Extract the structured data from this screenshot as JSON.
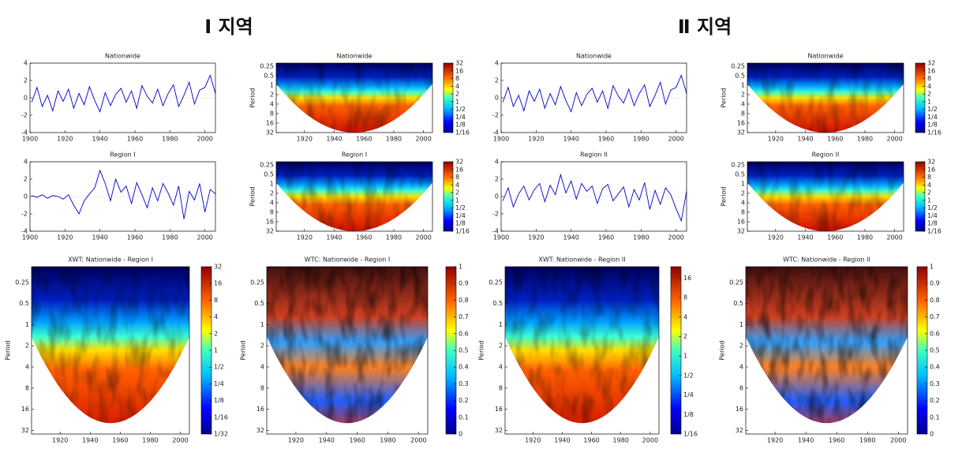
{
  "headers": [
    "Ⅰ 지역",
    "Ⅱ 지역"
  ],
  "chart_data": [
    {
      "type": "line",
      "title": "Nationwide",
      "color": "#0000cc",
      "xlim": [
        1900,
        2006
      ],
      "xticks": [
        1900,
        1920,
        1940,
        1960,
        1980,
        2000
      ],
      "ylim": [
        -4,
        4
      ],
      "yticks": [
        -4,
        -2,
        0,
        2,
        4
      ],
      "x": [
        1901,
        1904,
        1907,
        1910,
        1913,
        1916,
        1919,
        1922,
        1925,
        1928,
        1931,
        1934,
        1937,
        1940,
        1943,
        1946,
        1949,
        1952,
        1955,
        1958,
        1961,
        1964,
        1967,
        1970,
        1973,
        1976,
        1979,
        1982,
        1985,
        1988,
        1991,
        1994,
        1997,
        2000,
        2003,
        2006
      ],
      "values": [
        -0.5,
        1.2,
        -1.0,
        0.3,
        -1.5,
        0.8,
        -0.4,
        1.0,
        -1.2,
        0.5,
        -0.8,
        1.3,
        -0.3,
        -1.6,
        0.6,
        -0.9,
        0.4,
        1.1,
        -0.5,
        0.8,
        -1.2,
        1.4,
        0.2,
        -0.6,
        1.0,
        -0.9,
        0.5,
        1.5,
        -1.0,
        0.3,
        1.8,
        -0.7,
        0.9,
        1.2,
        2.6,
        0.5
      ]
    },
    {
      "type": "heatmap",
      "title": "Nationwide",
      "ylabel": "Period",
      "xlim": [
        1901,
        2006
      ],
      "xticks": [
        1920,
        1940,
        1960,
        1980,
        2000
      ],
      "ylim": [
        0.2,
        32
      ],
      "yticks": [
        0.25,
        0.5,
        1,
        2,
        4,
        8,
        16,
        32
      ],
      "log2": true,
      "colorbar": {
        "lim": [
          0.0625,
          32
        ],
        "log2": true,
        "ticks": [
          32,
          16,
          8,
          4,
          2,
          1,
          {
            "value": 0.5,
            "label": "1/2"
          },
          {
            "value": 0.25,
            "label": "1/4"
          },
          {
            "value": 0.125,
            "label": "1/8"
          },
          {
            "value": 0.0625,
            "label": "1/16"
          }
        ]
      }
    },
    {
      "type": "line",
      "title": "Nationwide",
      "color": "#0000cc",
      "xlim": [
        1900,
        2006
      ],
      "xticks": [
        1900,
        1920,
        1940,
        1960,
        1980,
        2000
      ],
      "ylim": [
        -4,
        4
      ],
      "yticks": [
        -4,
        -2,
        0,
        2,
        4
      ],
      "x": [
        1901,
        1904,
        1907,
        1910,
        1913,
        1916,
        1919,
        1922,
        1925,
        1928,
        1931,
        1934,
        1937,
        1940,
        1943,
        1946,
        1949,
        1952,
        1955,
        1958,
        1961,
        1964,
        1967,
        1970,
        1973,
        1976,
        1979,
        1982,
        1985,
        1988,
        1991,
        1994,
        1997,
        2000,
        2003,
        2006
      ],
      "values": [
        -0.5,
        1.2,
        -1.0,
        0.3,
        -1.5,
        0.8,
        -0.4,
        1.0,
        -1.2,
        0.5,
        -0.8,
        1.3,
        -0.3,
        -1.6,
        0.6,
        -0.9,
        0.4,
        1.1,
        -0.5,
        0.8,
        -1.2,
        1.4,
        0.2,
        -0.6,
        1.0,
        -0.9,
        0.5,
        1.5,
        -1.0,
        0.3,
        1.8,
        -0.7,
        0.9,
        1.2,
        2.6,
        0.5
      ]
    },
    {
      "type": "heatmap",
      "title": "Nationwide",
      "ylabel": "Period",
      "xlim": [
        1901,
        2006
      ],
      "xticks": [
        1920,
        1940,
        1960,
        1980,
        2000
      ],
      "ylim": [
        0.2,
        32
      ],
      "yticks": [
        0.25,
        0.5,
        1,
        2,
        4,
        8,
        16,
        32
      ],
      "log2": true,
      "colorbar": {
        "lim": [
          0.0625,
          32
        ],
        "log2": true,
        "ticks": [
          32,
          16,
          8,
          4,
          2,
          1,
          {
            "value": 0.5,
            "label": "1/2"
          },
          {
            "value": 0.25,
            "label": "1/4"
          },
          {
            "value": 0.125,
            "label": "1/8"
          },
          {
            "value": 0.0625,
            "label": "1/16"
          }
        ]
      }
    },
    {
      "type": "line",
      "title": "Region I",
      "color": "#0000cc",
      "xlim": [
        1900,
        2006
      ],
      "xticks": [
        1900,
        1920,
        1940,
        1960,
        1980,
        2000
      ],
      "ylim": [
        -4,
        4
      ],
      "yticks": [
        -4,
        -2,
        0,
        2,
        4
      ],
      "x": [
        1901,
        1904,
        1907,
        1910,
        1913,
        1916,
        1919,
        1922,
        1925,
        1928,
        1931,
        1934,
        1937,
        1940,
        1943,
        1946,
        1949,
        1952,
        1955,
        1958,
        1961,
        1964,
        1967,
        1970,
        1973,
        1976,
        1979,
        1982,
        1985,
        1988,
        1991,
        1994,
        1997,
        2000,
        2003,
        2006
      ],
      "values": [
        0.1,
        -0.1,
        0.2,
        -0.2,
        0.1,
        0,
        -0.3,
        0.2,
        -1.0,
        -2.0,
        -0.5,
        0.3,
        1.0,
        3.0,
        1.5,
        -0.5,
        2.0,
        0.5,
        1.2,
        -0.8,
        1.6,
        0.2,
        -1.3,
        1.0,
        -0.5,
        1.5,
        0.4,
        -1.0,
        1.2,
        -2.6,
        0.6,
        -0.4,
        1.5,
        -1.8,
        0.8,
        0.3
      ]
    },
    {
      "type": "heatmap",
      "title": "Region I",
      "ylabel": "Period",
      "xlim": [
        1901,
        2006
      ],
      "xticks": [
        1920,
        1940,
        1960,
        1980,
        2000
      ],
      "ylim": [
        0.2,
        32
      ],
      "yticks": [
        0.25,
        0.5,
        1,
        2,
        4,
        8,
        16,
        32
      ],
      "log2": true,
      "colorbar": {
        "lim": [
          0.0625,
          32
        ],
        "log2": true,
        "ticks": [
          32,
          16,
          8,
          4,
          2,
          1,
          {
            "value": 0.5,
            "label": "1/2"
          },
          {
            "value": 0.25,
            "label": "1/4"
          },
          {
            "value": 0.125,
            "label": "1/8"
          },
          {
            "value": 0.0625,
            "label": "1/16"
          }
        ]
      }
    },
    {
      "type": "line",
      "title": "Region II",
      "color": "#0000cc",
      "xlim": [
        1900,
        2006
      ],
      "xticks": [
        1900,
        1920,
        1940,
        1960,
        1980,
        2000
      ],
      "ylim": [
        -4,
        4
      ],
      "yticks": [
        -4,
        -2,
        0,
        2,
        4
      ],
      "x": [
        1901,
        1904,
        1907,
        1910,
        1913,
        1916,
        1919,
        1922,
        1925,
        1928,
        1931,
        1934,
        1937,
        1940,
        1943,
        1946,
        1949,
        1952,
        1955,
        1958,
        1961,
        1964,
        1967,
        1970,
        1973,
        1976,
        1979,
        1982,
        1985,
        1988,
        1991,
        1994,
        1997,
        2000,
        2003,
        2006
      ],
      "values": [
        -0.5,
        1.0,
        -1.2,
        0.3,
        1.2,
        -0.4,
        0.8,
        1.5,
        -0.6,
        1.3,
        0.2,
        2.5,
        0.4,
        1.8,
        -0.3,
        1.5,
        0.6,
        1.2,
        -0.8,
        0.9,
        1.4,
        -0.5,
        0.3,
        1.1,
        -1.2,
        0.8,
        -0.4,
        1.6,
        -1.5,
        0.7,
        -0.9,
        1.0,
        0.2,
        -1.4,
        -2.8,
        0.6
      ]
    },
    {
      "type": "heatmap",
      "title": "Region II",
      "ylabel": "Period",
      "xlim": [
        1901,
        2006
      ],
      "xticks": [
        1920,
        1940,
        1960,
        1980,
        2000
      ],
      "ylim": [
        0.2,
        32
      ],
      "yticks": [
        0.25,
        0.5,
        1,
        2,
        4,
        8,
        16,
        32
      ],
      "log2": true,
      "colorbar": {
        "lim": [
          0.0625,
          32
        ],
        "log2": true,
        "ticks": [
          32,
          16,
          8,
          4,
          2,
          1,
          {
            "value": 0.5,
            "label": "1/2"
          },
          {
            "value": 0.25,
            "label": "1/4"
          },
          {
            "value": 0.125,
            "label": "1/8"
          },
          {
            "value": 0.0625,
            "label": "1/16"
          }
        ]
      }
    },
    {
      "type": "heatmap",
      "title": "XWT:  Nationwide - Region I",
      "ylabel": "Period",
      "xlim": [
        1901,
        2006
      ],
      "xticks": [
        1920,
        1940,
        1960,
        1980,
        2000
      ],
      "ylim": [
        0.15,
        36
      ],
      "yticks": [
        0.25,
        0.5,
        1,
        2,
        4,
        8,
        16,
        32
      ],
      "log2": true,
      "colorbar": {
        "lim": [
          0.03125,
          32
        ],
        "log2": true,
        "ticks": [
          32,
          16,
          8,
          4,
          2,
          1,
          {
            "value": 0.5,
            "label": "1/2"
          },
          {
            "value": 0.25,
            "label": "1/4"
          },
          {
            "value": 0.125,
            "label": "1/8"
          },
          {
            "value": 0.0625,
            "label": "1/16"
          },
          {
            "value": 0.03125,
            "label": "1/32"
          }
        ]
      }
    },
    {
      "type": "heatmap",
      "title": "WTC:  Nationwide - Region I",
      "ylabel": "Period",
      "xlim": [
        1901,
        2006
      ],
      "xticks": [
        1920,
        1940,
        1960,
        1980,
        2000
      ],
      "ylim": [
        0.15,
        36
      ],
      "yticks": [
        0.25,
        0.5,
        1,
        2,
        4,
        8,
        16,
        32
      ],
      "log2": true,
      "coherence": true,
      "colorbar": {
        "lim": [
          0,
          1
        ],
        "log2": false,
        "ticks": [
          0,
          0.1,
          0.2,
          0.3,
          0.4,
          0.5,
          0.6,
          0.7,
          0.8,
          0.9,
          1
        ]
      }
    },
    {
      "type": "heatmap",
      "title": "XWT:  Nationwide - Region II",
      "ylabel": "Period",
      "xlim": [
        1901,
        2006
      ],
      "xticks": [
        1920,
        1940,
        1960,
        1980,
        2000
      ],
      "ylim": [
        0.15,
        36
      ],
      "yticks": [
        0.25,
        0.5,
        1,
        2,
        4,
        8,
        16,
        32
      ],
      "log2": true,
      "colorbar": {
        "lim": [
          0.0625,
          24
        ],
        "log2": true,
        "ticks": [
          16,
          8,
          4,
          2,
          1,
          {
            "value": 0.5,
            "label": "1/2"
          },
          {
            "value": 0.25,
            "label": "1/4"
          },
          {
            "value": 0.125,
            "label": "1/8"
          },
          {
            "value": 0.0625,
            "label": "1/16"
          }
        ]
      }
    },
    {
      "type": "heatmap",
      "title": "WTC:  Nationwide - Region II",
      "ylabel": "Period",
      "xlim": [
        1901,
        2006
      ],
      "xticks": [
        1920,
        1940,
        1960,
        1980,
        2000
      ],
      "ylim": [
        0.15,
        36
      ],
      "yticks": [
        0.25,
        0.5,
        1,
        2,
        4,
        8,
        16,
        32
      ],
      "log2": true,
      "coherence": true,
      "colorbar": {
        "lim": [
          0,
          1
        ],
        "log2": false,
        "ticks": [
          0,
          0.1,
          0.2,
          0.3,
          0.4,
          0.5,
          0.6,
          0.7,
          0.8,
          0.9,
          1
        ]
      }
    }
  ]
}
